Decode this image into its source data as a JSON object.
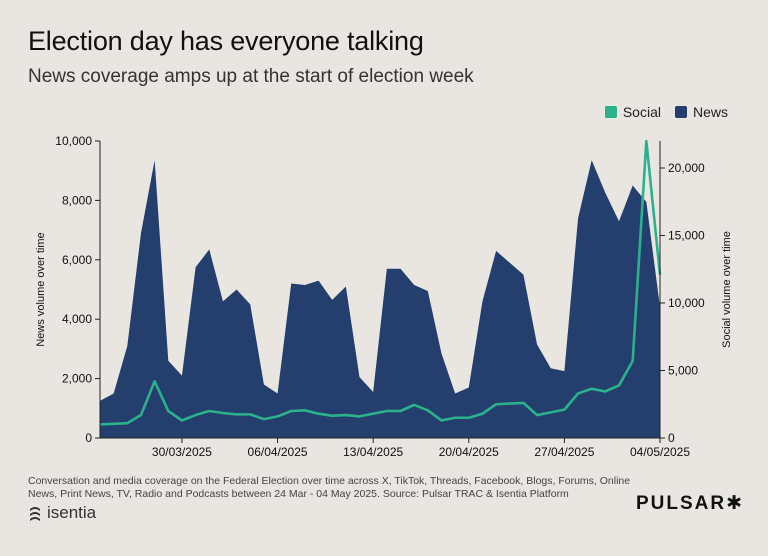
{
  "header": {
    "title": "Election day has everyone talking",
    "subtitle": "News coverage amps up at the start of election week"
  },
  "legend": {
    "social": "Social",
    "news": "News"
  },
  "footer": {
    "note": "Conversation and media coverage on the Federal Election over time across X, TikTok, Threads, Facebook, Blogs, Forums, Online News, Print News, TV, Radio and Podcasts between 24 Mar - 04 May 2025. Source: Pulsar TRAC & Isentia Platform",
    "isentia_logo": "isentia",
    "pulsar_logo": "PULSAR✱"
  },
  "colors": {
    "news": "#243f6d",
    "social": "#2bb28d",
    "background": "#e9e6e2"
  },
  "chart_data": {
    "type": "area",
    "title": "Election day has everyone talking",
    "subtitle": "News coverage amps up at the start of election week",
    "x": [
      "24/03/2025",
      "25/03/2025",
      "26/03/2025",
      "27/03/2025",
      "28/03/2025",
      "29/03/2025",
      "30/03/2025",
      "31/03/2025",
      "01/04/2025",
      "02/04/2025",
      "03/04/2025",
      "04/04/2025",
      "05/04/2025",
      "06/04/2025",
      "07/04/2025",
      "08/04/2025",
      "09/04/2025",
      "10/04/2025",
      "11/04/2025",
      "12/04/2025",
      "13/04/2025",
      "14/04/2025",
      "15/04/2025",
      "16/04/2025",
      "17/04/2025",
      "18/04/2025",
      "19/04/2025",
      "20/04/2025",
      "21/04/2025",
      "22/04/2025",
      "23/04/2025",
      "24/04/2025",
      "25/04/2025",
      "26/04/2025",
      "27/04/2025",
      "28/04/2025",
      "29/04/2025",
      "30/04/2025",
      "01/05/2025",
      "02/05/2025",
      "03/05/2025",
      "04/05/2025"
    ],
    "xticks": [
      "30/03/2025",
      "06/04/2025",
      "13/04/2025",
      "20/04/2025",
      "27/04/2025",
      "04/05/2025"
    ],
    "series": [
      {
        "name": "News",
        "axis": "left",
        "type": "area",
        "values": [
          1250,
          1500,
          3100,
          6900,
          9350,
          2600,
          2100,
          5750,
          6350,
          4600,
          5000,
          4500,
          1800,
          1500,
          5200,
          5150,
          5300,
          4650,
          5100,
          2050,
          1550,
          5700,
          5700,
          5150,
          4950,
          2850,
          1500,
          1700,
          4600,
          6300,
          5900,
          5500,
          3150,
          2350,
          2250,
          7400,
          9350,
          8250,
          7300,
          8500,
          7950,
          4400
        ]
      },
      {
        "name": "Social",
        "axis": "right",
        "type": "line",
        "values": [
          1000,
          1050,
          1100,
          1700,
          4200,
          2000,
          1300,
          1700,
          2000,
          1850,
          1750,
          1750,
          1400,
          1600,
          2000,
          2050,
          1800,
          1650,
          1700,
          1600,
          1800,
          2000,
          2000,
          2450,
          2050,
          1300,
          1500,
          1500,
          1800,
          2500,
          2550,
          2600,
          1700,
          1900,
          2100,
          3300,
          3650,
          3450,
          3900,
          5700,
          22000,
          12100
        ]
      }
    ],
    "ylabel": "News volume over time",
    "ylim": [
      0,
      10000
    ],
    "yticks": [
      0,
      2000,
      4000,
      6000,
      8000,
      10000
    ],
    "y2label": "Social volume over time",
    "y2lim": [
      0,
      22000
    ],
    "y2ticks": [
      0,
      5000,
      10000,
      15000,
      20000
    ],
    "grid": false,
    "legend_position": "top-right"
  }
}
